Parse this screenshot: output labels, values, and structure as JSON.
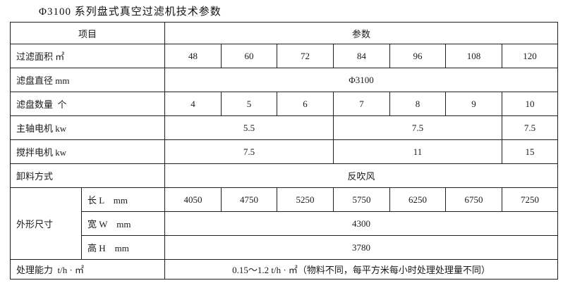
{
  "page": {
    "title": "Φ3100 系列盘式真空过滤机技术参数"
  },
  "table": {
    "rows": [
      {
        "name": "header-row",
        "cells": [
          {
            "text": "项目",
            "colspan": 2,
            "name": "header-item-label"
          },
          {
            "text": "参数",
            "colspan": 7,
            "name": "header-param-label"
          }
        ]
      },
      {
        "name": "row-filter-area",
        "cells": [
          {
            "text": "过滤面积 ㎡",
            "colspan": 2,
            "align": "left",
            "name": "label-filter-area"
          },
          {
            "text": "48",
            "name": "value-filter-area-1"
          },
          {
            "text": "60",
            "name": "value-filter-area-2"
          },
          {
            "text": "72",
            "name": "value-filter-area-3"
          },
          {
            "text": "84",
            "name": "value-filter-area-4"
          },
          {
            "text": "96",
            "name": "value-filter-area-5"
          },
          {
            "text": "108",
            "name": "value-filter-area-6"
          },
          {
            "text": "120",
            "name": "value-filter-area-7"
          }
        ]
      },
      {
        "name": "row-disc-diameter",
        "cells": [
          {
            "text": "滤盘直径 mm",
            "colspan": 2,
            "align": "left",
            "name": "label-disc-diameter"
          },
          {
            "text": "Φ3100",
            "colspan": 7,
            "name": "value-disc-diameter"
          }
        ]
      },
      {
        "name": "row-disc-count",
        "cells": [
          {
            "text": "滤盘数量  个",
            "colspan": 2,
            "align": "left",
            "name": "label-disc-count"
          },
          {
            "text": "4",
            "name": "value-disc-count-1"
          },
          {
            "text": "5",
            "name": "value-disc-count-2"
          },
          {
            "text": "6",
            "name": "value-disc-count-3"
          },
          {
            "text": "7",
            "name": "value-disc-count-4"
          },
          {
            "text": "8",
            "name": "value-disc-count-5"
          },
          {
            "text": "9",
            "name": "value-disc-count-6"
          },
          {
            "text": "10",
            "name": "value-disc-count-7"
          }
        ]
      },
      {
        "name": "row-main-motor",
        "cells": [
          {
            "text": "主轴电机 kw",
            "colspan": 2,
            "align": "left",
            "name": "label-main-motor"
          },
          {
            "text": "5.5",
            "colspan": 3,
            "name": "value-main-motor-1"
          },
          {
            "text": "7.5",
            "colspan": 3,
            "name": "value-main-motor-2"
          },
          {
            "text": "7.5",
            "name": "value-main-motor-3"
          }
        ]
      },
      {
        "name": "row-agitator-motor",
        "cells": [
          {
            "text": "搅拌电机 kw",
            "colspan": 2,
            "align": "left",
            "name": "label-agitator-motor"
          },
          {
            "text": "7.5",
            "colspan": 3,
            "name": "value-agitator-motor-1"
          },
          {
            "text": "11",
            "colspan": 3,
            "name": "value-agitator-motor-2"
          },
          {
            "text": "15",
            "name": "value-agitator-motor-3"
          }
        ]
      },
      {
        "name": "row-discharge-method",
        "cells": [
          {
            "text": "卸料方式",
            "colspan": 2,
            "align": "left",
            "name": "label-discharge-method"
          },
          {
            "text": "反吹风",
            "colspan": 7,
            "name": "value-discharge-method"
          }
        ]
      },
      {
        "name": "row-dimension-length",
        "cells": [
          {
            "text": "外形尺寸",
            "rowspan": 3,
            "align": "left",
            "name": "label-dimensions"
          },
          {
            "text": "长 L    mm",
            "align": "left",
            "name": "label-length"
          },
          {
            "text": "4050",
            "name": "value-length-1"
          },
          {
            "text": "4750",
            "name": "value-length-2"
          },
          {
            "text": "5250",
            "name": "value-length-3"
          },
          {
            "text": "5750",
            "name": "value-length-4"
          },
          {
            "text": "6250",
            "name": "value-length-5"
          },
          {
            "text": "6750",
            "name": "value-length-6"
          },
          {
            "text": "7250",
            "name": "value-length-7"
          }
        ]
      },
      {
        "name": "row-dimension-width",
        "cells": [
          {
            "text": "宽 W    mm",
            "align": "left",
            "name": "label-width"
          },
          {
            "text": "4300",
            "colspan": 7,
            "name": "value-width"
          }
        ]
      },
      {
        "name": "row-dimension-height",
        "cells": [
          {
            "text": "高 H    mm",
            "align": "left",
            "name": "label-height"
          },
          {
            "text": "3780",
            "colspan": 7,
            "name": "value-height"
          }
        ]
      },
      {
        "name": "row-capacity",
        "cells": [
          {
            "text": "处理能力  t/h · ㎡",
            "colspan": 2,
            "align": "left",
            "name": "label-capacity"
          },
          {
            "text": "0.15～1.2 t/h · ㎡（物料不同，每平方米每小时处理处理量不同）",
            "colspan": 7,
            "name": "value-capacity"
          }
        ]
      }
    ]
  }
}
